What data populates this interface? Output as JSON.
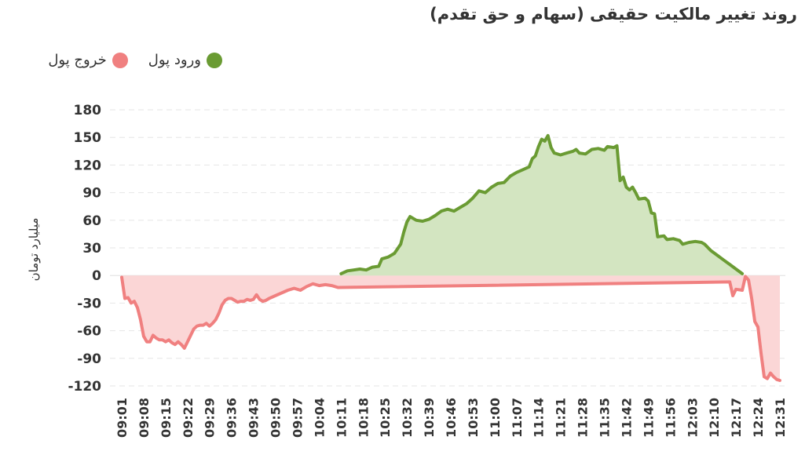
{
  "chart_data": {
    "type": "area",
    "title": "روند تغییر مالکیت حقیقی (سهام و حق تقدم)",
    "ylabel": "میلیارد تومان",
    "xlabel": "",
    "ylim": [
      -120,
      180
    ],
    "yticks": [
      180,
      150,
      120,
      90,
      60,
      30,
      0,
      -30,
      -60,
      -90,
      -120
    ],
    "xticks": [
      "09:01",
      "09:08",
      "09:15",
      "09:22",
      "09:29",
      "09:36",
      "09:43",
      "09:50",
      "09:57",
      "10:04",
      "10:11",
      "10:18",
      "10:25",
      "10:32",
      "10:39",
      "10:46",
      "10:53",
      "11:00",
      "11:07",
      "11:14",
      "11:21",
      "11:28",
      "11:35",
      "11:42",
      "11:49",
      "11:56",
      "12:03",
      "12:10",
      "12:17",
      "12:24",
      "12:31"
    ],
    "grid": true,
    "legend_position": "top-left",
    "series": [
      {
        "name": "ورود پول",
        "color": "#6a9b33",
        "fill": "#d3e5c1",
        "points": [
          [
            "10:11",
            2
          ],
          [
            "10:13",
            5
          ],
          [
            "10:15",
            6
          ],
          [
            "10:17",
            7
          ],
          [
            "10:19",
            6
          ],
          [
            "10:21",
            9
          ],
          [
            "10:23",
            10
          ],
          [
            "10:24",
            18
          ],
          [
            "10:26",
            20
          ],
          [
            "10:28",
            24
          ],
          [
            "10:30",
            34
          ],
          [
            "10:31",
            47
          ],
          [
            "10:32",
            58
          ],
          [
            "10:33",
            64
          ],
          [
            "10:35",
            60
          ],
          [
            "10:37",
            59
          ],
          [
            "10:39",
            61
          ],
          [
            "10:41",
            65
          ],
          [
            "10:43",
            70
          ],
          [
            "10:45",
            72
          ],
          [
            "10:47",
            70
          ],
          [
            "10:49",
            74
          ],
          [
            "10:51",
            78
          ],
          [
            "10:53",
            84
          ],
          [
            "10:55",
            92
          ],
          [
            "10:57",
            90
          ],
          [
            "10:59",
            96
          ],
          [
            "11:01",
            100
          ],
          [
            "11:03",
            101
          ],
          [
            "11:05",
            108
          ],
          [
            "11:07",
            112
          ],
          [
            "11:09",
            115
          ],
          [
            "11:11",
            118
          ],
          [
            "11:12",
            127
          ],
          [
            "11:13",
            130
          ],
          [
            "11:14",
            140
          ],
          [
            "11:15",
            148
          ],
          [
            "11:16",
            146
          ],
          [
            "11:17",
            152
          ],
          [
            "11:18",
            139
          ],
          [
            "11:19",
            133
          ],
          [
            "11:21",
            131
          ],
          [
            "11:23",
            133
          ],
          [
            "11:25",
            135
          ],
          [
            "11:26",
            137
          ],
          [
            "11:27",
            133
          ],
          [
            "11:29",
            132
          ],
          [
            "11:31",
            137
          ],
          [
            "11:33",
            138
          ],
          [
            "11:35",
            136
          ],
          [
            "11:36",
            140
          ],
          [
            "11:38",
            139
          ],
          [
            "11:39",
            141
          ],
          [
            "11:40",
            103
          ],
          [
            "11:41",
            107
          ],
          [
            "11:42",
            96
          ],
          [
            "11:43",
            93
          ],
          [
            "11:44",
            96
          ],
          [
            "11:45",
            90
          ],
          [
            "11:46",
            83
          ],
          [
            "11:48",
            84
          ],
          [
            "11:49",
            81
          ],
          [
            "11:50",
            68
          ],
          [
            "11:51",
            67
          ],
          [
            "11:52",
            42
          ],
          [
            "11:54",
            43
          ],
          [
            "11:55",
            39
          ],
          [
            "11:57",
            40
          ],
          [
            "11:59",
            38
          ],
          [
            "12:00",
            34
          ],
          [
            "12:02",
            36
          ],
          [
            "12:04",
            37
          ],
          [
            "12:06",
            36
          ],
          [
            "12:07",
            34
          ],
          [
            "12:09",
            27
          ],
          [
            "12:11",
            22
          ],
          [
            "12:13",
            17
          ],
          [
            "12:15",
            12
          ],
          [
            "12:17",
            7
          ],
          [
            "12:19",
            2
          ]
        ]
      },
      {
        "name": "خروج پول",
        "color": "#f08080",
        "fill": "#fbd6d6",
        "points": [
          [
            "09:01",
            -2
          ],
          [
            "09:02",
            -25
          ],
          [
            "09:03",
            -24
          ],
          [
            "09:04",
            -30
          ],
          [
            "09:05",
            -28
          ],
          [
            "09:06",
            -35
          ],
          [
            "09:07",
            -48
          ],
          [
            "09:08",
            -66
          ],
          [
            "09:09",
            -72
          ],
          [
            "09:10",
            -72
          ],
          [
            "09:11",
            -65
          ],
          [
            "09:12",
            -68
          ],
          [
            "09:13",
            -70
          ],
          [
            "09:14",
            -70
          ],
          [
            "09:15",
            -72
          ],
          [
            "09:16",
            -70
          ],
          [
            "09:17",
            -73
          ],
          [
            "09:18",
            -75
          ],
          [
            "09:19",
            -72
          ],
          [
            "09:20",
            -75
          ],
          [
            "09:21",
            -79
          ],
          [
            "09:22",
            -72
          ],
          [
            "09:23",
            -65
          ],
          [
            "09:24",
            -58
          ],
          [
            "09:25",
            -55
          ],
          [
            "09:26",
            -54
          ],
          [
            "09:27",
            -54
          ],
          [
            "09:28",
            -52
          ],
          [
            "09:29",
            -55
          ],
          [
            "09:30",
            -52
          ],
          [
            "09:31",
            -48
          ],
          [
            "09:32",
            -41
          ],
          [
            "09:33",
            -32
          ],
          [
            "09:34",
            -27
          ],
          [
            "09:35",
            -25
          ],
          [
            "09:36",
            -25
          ],
          [
            "09:37",
            -27
          ],
          [
            "09:38",
            -29
          ],
          [
            "09:39",
            -28
          ],
          [
            "09:40",
            -28
          ],
          [
            "09:41",
            -26
          ],
          [
            "09:42",
            -27
          ],
          [
            "09:43",
            -26
          ],
          [
            "09:44",
            -21
          ],
          [
            "09:45",
            -26
          ],
          [
            "09:46",
            -28
          ],
          [
            "09:47",
            -27
          ],
          [
            "09:48",
            -25
          ],
          [
            "09:50",
            -22
          ],
          [
            "09:52",
            -19
          ],
          [
            "09:54",
            -16
          ],
          [
            "09:56",
            -14
          ],
          [
            "09:58",
            -16
          ],
          [
            "10:00",
            -12
          ],
          [
            "10:02",
            -9
          ],
          [
            "10:04",
            -11
          ],
          [
            "10:06",
            -10
          ],
          [
            "10:08",
            -11
          ],
          [
            "10:10",
            -13
          ],
          [
            "12:15",
            -7
          ],
          [
            "12:16",
            -22
          ],
          [
            "12:17",
            -15
          ],
          [
            "12:19",
            -16
          ],
          [
            "12:20",
            -1
          ],
          [
            "12:21",
            -5
          ],
          [
            "12:22",
            -25
          ],
          [
            "12:23",
            -50
          ],
          [
            "12:24",
            -56
          ],
          [
            "12:25",
            -85
          ],
          [
            "12:26",
            -110
          ],
          [
            "12:27",
            -112
          ],
          [
            "12:28",
            -106
          ],
          [
            "12:29",
            -110
          ],
          [
            "12:30",
            -113
          ],
          [
            "12:31",
            -114
          ]
        ]
      }
    ]
  }
}
